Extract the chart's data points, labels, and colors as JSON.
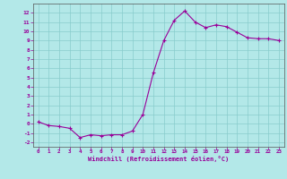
{
  "x": [
    0,
    1,
    2,
    3,
    4,
    5,
    6,
    7,
    8,
    9,
    10,
    11,
    12,
    13,
    14,
    15,
    16,
    17,
    18,
    19,
    20,
    21,
    22,
    23
  ],
  "y": [
    0.2,
    -0.2,
    -0.3,
    -0.5,
    -1.5,
    -1.2,
    -1.3,
    -1.2,
    -1.2,
    -0.8,
    1.0,
    5.5,
    9.0,
    11.2,
    12.2,
    11.0,
    10.4,
    10.7,
    10.5,
    9.9,
    9.3,
    9.2,
    9.2,
    9.0
  ],
  "xlim": [
    -0.5,
    23.5
  ],
  "ylim": [
    -2.5,
    13.0
  ],
  "yticks": [
    -2,
    -1,
    0,
    1,
    2,
    3,
    4,
    5,
    6,
    7,
    8,
    9,
    10,
    11,
    12
  ],
  "xticks": [
    0,
    1,
    2,
    3,
    4,
    5,
    6,
    7,
    8,
    9,
    10,
    11,
    12,
    13,
    14,
    15,
    16,
    17,
    18,
    19,
    20,
    21,
    22,
    23
  ],
  "xlabel": "Windchill (Refroidissement éolien,°C)",
  "line_color": "#990099",
  "marker_color": "#990099",
  "bg_color": "#b3e8e8",
  "grid_color": "#88cccc",
  "axis_color": "#333333",
  "tick_color": "#990099",
  "label_color": "#990099"
}
